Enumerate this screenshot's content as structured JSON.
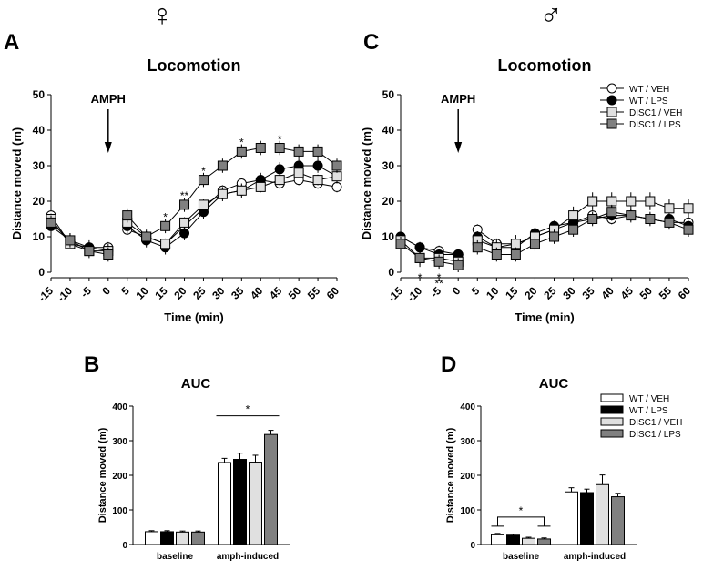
{
  "panels": {
    "sex_female": "♀",
    "sex_male": "♂",
    "letter_a": "A",
    "letter_b": "B",
    "letter_c": "C",
    "letter_d": "D"
  },
  "legend_line": [
    {
      "label": "WT / VEH",
      "marker": "circle",
      "fill": "#ffffff"
    },
    {
      "label": "WT / LPS",
      "marker": "circle",
      "fill": "#000000"
    },
    {
      "label": "DISC1 / VEH",
      "marker": "square",
      "fill": "#e0e0e0"
    },
    {
      "label": "DISC1 / LPS",
      "marker": "square",
      "fill": "#808080"
    }
  ],
  "legend_bar": [
    {
      "label": "WT / VEH",
      "fill": "#ffffff"
    },
    {
      "label": "WT / LPS",
      "fill": "#000000"
    },
    {
      "label": "DISC1 / VEH",
      "fill": "#e0e0e0"
    },
    {
      "label": "DISC1 / LPS",
      "fill": "#808080"
    }
  ],
  "chart_data": [
    {
      "id": "A",
      "type": "line",
      "title": "Locomotion",
      "xlabel": "Time (min)",
      "ylabel": "Distance moved (m)",
      "ylim": [
        0,
        50
      ],
      "yticks": [
        0,
        10,
        20,
        30,
        40,
        50
      ],
      "xticks": [
        -15,
        -10,
        -5,
        0,
        5,
        10,
        15,
        20,
        25,
        30,
        35,
        40,
        45,
        50,
        55,
        60
      ],
      "annotation": "AMPH",
      "annotation_x": 0,
      "baseline_x": [
        -15,
        -10,
        -5,
        0
      ],
      "post_x": [
        5,
        10,
        15,
        20,
        25,
        30,
        35,
        40,
        45,
        50,
        55,
        60
      ],
      "series": [
        {
          "name": "WT / VEH",
          "baseline": [
            16,
            8,
            7,
            7
          ],
          "post": [
            12,
            10,
            8,
            13,
            18,
            23,
            25,
            26,
            25,
            26,
            25,
            24
          ],
          "err": 1.5
        },
        {
          "name": "WT / LPS",
          "baseline": [
            13,
            9,
            7,
            6
          ],
          "post": [
            13,
            9,
            7,
            11,
            17,
            22,
            23,
            26,
            29,
            30,
            30,
            27
          ],
          "err": 2
        },
        {
          "name": "DISC1 / VEH",
          "baseline": [
            15,
            8,
            6,
            6
          ],
          "post": [
            14,
            10,
            8,
            14,
            19,
            22,
            23,
            24,
            26,
            28,
            26,
            27
          ],
          "err": 1.5
        },
        {
          "name": "DISC1 / LPS",
          "baseline": [
            14,
            9,
            6,
            5
          ],
          "post": [
            16,
            10,
            13,
            19,
            26,
            30,
            34,
            35,
            35,
            34,
            34,
            30
          ],
          "err": 2
        }
      ],
      "significance": [
        {
          "x": 15,
          "y": 15.5,
          "label": "*"
        },
        {
          "x": 20,
          "y": 21.5,
          "label": "**"
        },
        {
          "x": 25,
          "y": 28.5,
          "label": "*"
        },
        {
          "x": 35,
          "y": 36.5,
          "label": "*"
        },
        {
          "x": 45,
          "y": 37.5,
          "label": "*"
        }
      ]
    },
    {
      "id": "C",
      "type": "line",
      "title": "Locomotion",
      "xlabel": "Time (min)",
      "ylabel": "Distance moved (m)",
      "ylim": [
        0,
        50
      ],
      "yticks": [
        0,
        10,
        20,
        30,
        40,
        50
      ],
      "xticks": [
        -15,
        -10,
        -5,
        0,
        5,
        10,
        15,
        20,
        25,
        30,
        35,
        40,
        45,
        50,
        55,
        60
      ],
      "annotation": "AMPH",
      "annotation_x": 0,
      "baseline_x": [
        -15,
        -10,
        -5,
        0
      ],
      "post_x": [
        5,
        10,
        15,
        20,
        25,
        30,
        35,
        40,
        45,
        50,
        55,
        60
      ],
      "series": [
        {
          "name": "WT / VEH",
          "baseline": [
            10,
            7,
            6,
            5
          ],
          "post": [
            12,
            8,
            8,
            10,
            12,
            14,
            16,
            15,
            16,
            15,
            14,
            14
          ],
          "err": 1.5
        },
        {
          "name": "WT / LPS",
          "baseline": [
            10,
            7,
            5,
            5
          ],
          "post": [
            10,
            7,
            7,
            11,
            13,
            14,
            15,
            16,
            16,
            15,
            15,
            13
          ],
          "err": 1.5
        },
        {
          "name": "DISC1 / VEH",
          "baseline": [
            9,
            4,
            4,
            3
          ],
          "post": [
            9,
            7,
            8,
            10,
            12,
            16,
            20,
            20,
            20,
            20,
            18,
            18
          ],
          "err": 2.5
        },
        {
          "name": "DISC1 / LPS",
          "baseline": [
            8,
            4,
            3,
            2
          ],
          "post": [
            7,
            5,
            5,
            8,
            10,
            12,
            15,
            17,
            16,
            15,
            14,
            12
          ],
          "err": 2
        }
      ],
      "significance": [
        {
          "x": -10,
          "y": -1.5,
          "label": "*"
        },
        {
          "x": -5,
          "y": -1.5,
          "label": "*"
        },
        {
          "x": -5,
          "y": -3.2,
          "label": "**"
        }
      ]
    },
    {
      "id": "B",
      "type": "bar",
      "title": "AUC",
      "xlabel": "",
      "ylabel": "Distance moved (m)",
      "ylim": [
        0,
        400
      ],
      "yticks": [
        0,
        100,
        200,
        300,
        400
      ],
      "categories": [
        "baseline",
        "amph-induced"
      ],
      "series": [
        {
          "name": "WT / VEH",
          "values": [
            37,
            237
          ],
          "err": [
            3,
            12
          ]
        },
        {
          "name": "WT / LPS",
          "values": [
            37,
            246
          ],
          "err": [
            3,
            18
          ]
        },
        {
          "name": "DISC1 / VEH",
          "values": [
            36,
            238
          ],
          "err": [
            3,
            20
          ]
        },
        {
          "name": "DISC1 / LPS",
          "values": [
            36,
            318
          ],
          "err": [
            3,
            12
          ]
        }
      ],
      "significance": [
        {
          "category": "amph-induced",
          "label": "*"
        }
      ]
    },
    {
      "id": "D",
      "type": "bar",
      "title": "AUC",
      "xlabel": "",
      "ylabel": "Distance moved (m)",
      "ylim": [
        0,
        400
      ],
      "yticks": [
        0,
        100,
        200,
        300,
        400
      ],
      "categories": [
        "baseline",
        "amph-induced"
      ],
      "series": [
        {
          "name": "WT / VEH",
          "values": [
            28,
            152
          ],
          "err": [
            4,
            12
          ]
        },
        {
          "name": "WT / LPS",
          "values": [
            27,
            150
          ],
          "err": [
            3,
            10
          ]
        },
        {
          "name": "DISC1 / VEH",
          "values": [
            18,
            173
          ],
          "err": [
            3,
            28
          ]
        },
        {
          "name": "DISC1 / LPS",
          "values": [
            16,
            138
          ],
          "err": [
            3,
            10
          ]
        }
      ],
      "significance": [
        {
          "category": "baseline",
          "label": "*"
        }
      ]
    }
  ]
}
